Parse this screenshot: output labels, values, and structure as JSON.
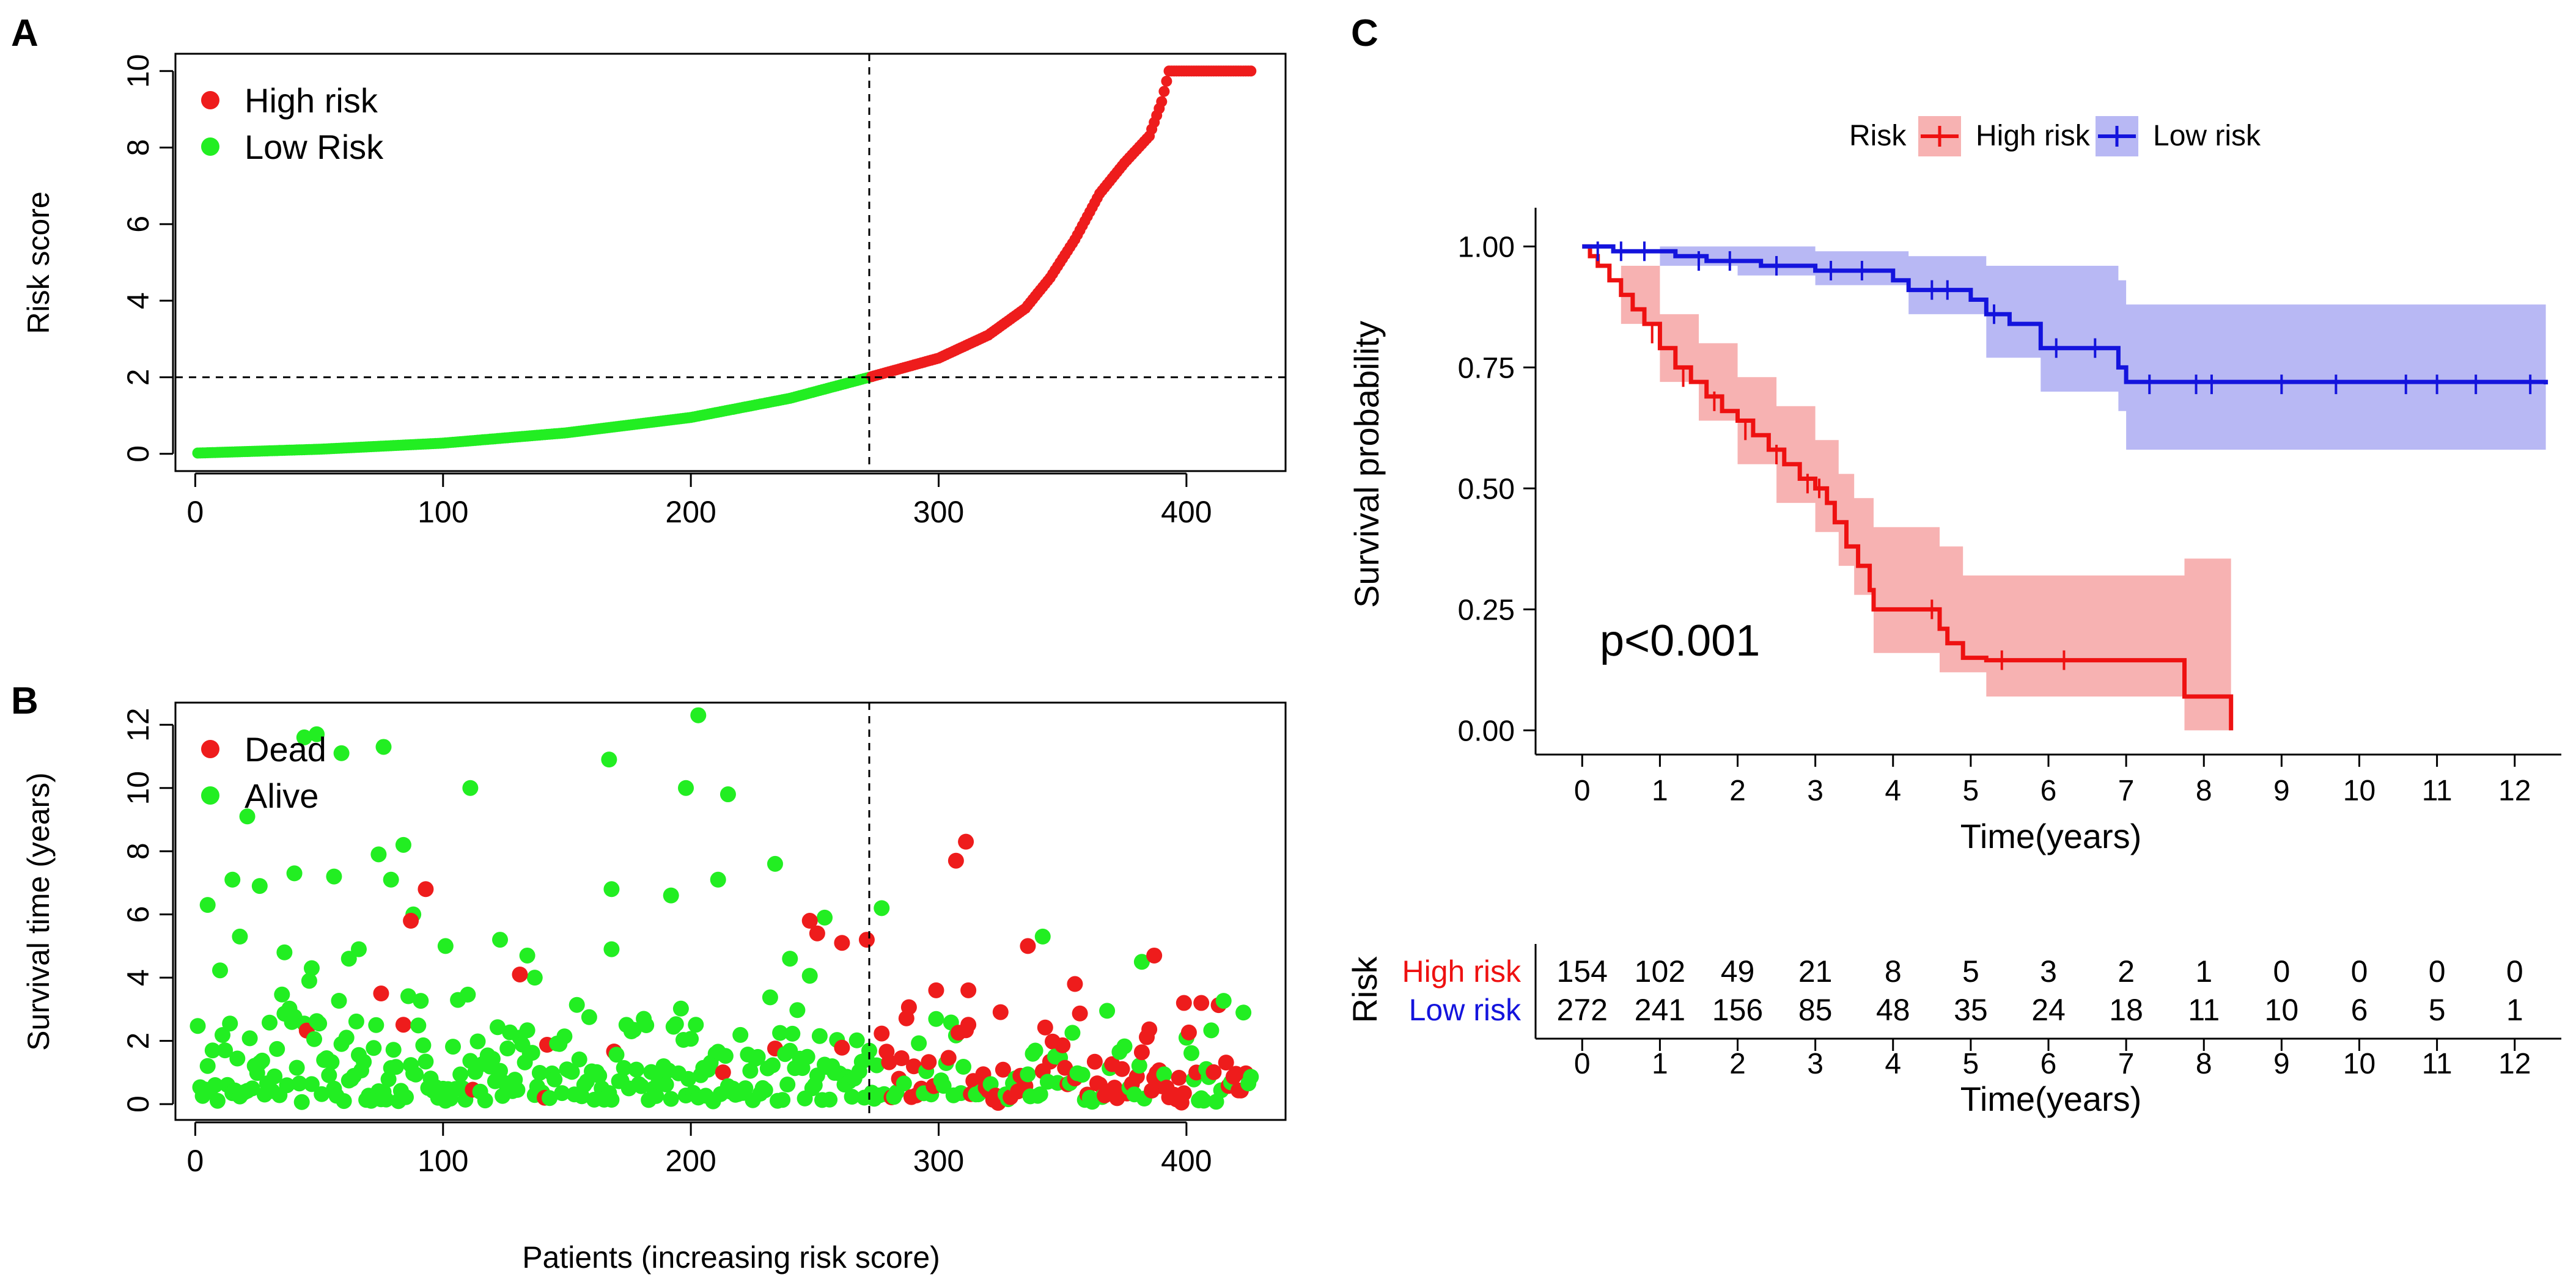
{
  "figure": {
    "panel_a_letter": "A",
    "panel_b_letter": "B",
    "panel_c_letter": "C"
  },
  "colors": {
    "high": "#ee1c1c",
    "low": "#22ee22",
    "km_high": "#ee1111",
    "km_low": "#1414dd",
    "km_high_ci": "#f7b2b2",
    "km_low_ci": "#b8b8f4"
  },
  "chart_data": [
    {
      "id": "riskscore",
      "type": "scatter",
      "ylabel": "Risk score",
      "xlabel": "",
      "xlim": [
        -8,
        440
      ],
      "ylim": [
        -0.45,
        10.45
      ],
      "x_ticks": [
        0,
        100,
        200,
        300,
        400
      ],
      "y_ticks": [
        0,
        2,
        4,
        6,
        8,
        10
      ],
      "cutoff_x": 272,
      "cutoff_y": 2.0,
      "n_low": 272,
      "n_total": 426,
      "curve_knots": [
        [
          1,
          0.02
        ],
        [
          50,
          0.12
        ],
        [
          100,
          0.28
        ],
        [
          150,
          0.55
        ],
        [
          200,
          0.95
        ],
        [
          240,
          1.45
        ],
        [
          272,
          2.0
        ],
        [
          300,
          2.5
        ],
        [
          320,
          3.1
        ],
        [
          335,
          3.8
        ],
        [
          345,
          4.6
        ],
        [
          355,
          5.6
        ],
        [
          365,
          6.8
        ],
        [
          375,
          7.6
        ],
        [
          385,
          8.3
        ],
        [
          390,
          9.2
        ],
        [
          393,
          10.0
        ],
        [
          426,
          10.0
        ]
      ],
      "legend": [
        {
          "label": "High risk",
          "group": "high"
        },
        {
          "label": "Low Risk",
          "group": "low"
        }
      ]
    },
    {
      "id": "survival_status",
      "type": "scatter",
      "ylabel": "Survival time (years)",
      "xlabel": "Patients (increasing risk score)",
      "xlim": [
        -8,
        440
      ],
      "ylim": [
        -0.5,
        12.7
      ],
      "x_ticks": [
        0,
        100,
        200,
        300,
        400
      ],
      "y_ticks": [
        0,
        2,
        4,
        6,
        8,
        10,
        12
      ],
      "cutoff_x": 272,
      "legend": [
        {
          "label": "Dead",
          "status": "dead"
        },
        {
          "label": "Alive",
          "status": "alive"
        }
      ],
      "highlight_points": {
        "alive": [
          [
            203,
            12.3
          ],
          [
            44,
            11.6
          ],
          [
            49,
            11.7
          ],
          [
            59,
            11.1
          ],
          [
            76,
            11.3
          ],
          [
            167,
            10.9
          ],
          [
            198,
            10.0
          ],
          [
            111,
            10.0
          ],
          [
            215,
            9.8
          ],
          [
            21,
            9.1
          ],
          [
            74,
            7.9
          ],
          [
            84,
            8.2
          ],
          [
            168,
            6.8
          ],
          [
            192,
            6.6
          ],
          [
            211,
            7.1
          ],
          [
            234,
            7.6
          ],
          [
            15,
            7.1
          ],
          [
            40,
            7.3
          ],
          [
            56,
            7.2
          ],
          [
            79,
            7.1
          ],
          [
            88,
            6.0
          ],
          [
            5,
            6.3
          ],
          [
            26,
            6.9
          ],
          [
            254,
            5.9
          ],
          [
            277,
            6.2
          ],
          [
            342,
            5.3
          ],
          [
            18,
            5.3
          ],
          [
            36,
            4.8
          ],
          [
            66,
            4.9
          ],
          [
            101,
            5.0
          ],
          [
            123,
            5.2
          ],
          [
            168,
            4.9
          ],
          [
            240,
            4.6
          ],
          [
            382,
            4.5
          ],
          [
            134,
            4.7
          ],
          [
            47,
            4.3
          ],
          [
            62,
            4.6
          ],
          [
            137,
            4.0
          ]
        ],
        "dead": [
          [
            93,
            6.8
          ],
          [
            87,
            5.8
          ],
          [
            311,
            8.3
          ],
          [
            307,
            7.7
          ],
          [
            251,
            5.4
          ],
          [
            261,
            5.1
          ],
          [
            271,
            5.2
          ],
          [
            248,
            5.8
          ],
          [
            336,
            5.0
          ],
          [
            387,
            4.7
          ],
          [
            312,
            3.6
          ],
          [
            299,
            3.6
          ],
          [
            355,
            3.8
          ],
          [
            131,
            4.1
          ],
          [
            75,
            3.5
          ],
          [
            399,
            3.2
          ],
          [
            406,
            3.2
          ]
        ]
      }
    },
    {
      "id": "km",
      "type": "line",
      "xlabel": "Time(years)",
      "ylabel": "Survival probability",
      "xlim": [
        -0.6,
        12.6
      ],
      "ylim": [
        -0.05,
        1.08
      ],
      "x_ticks": [
        0,
        1,
        2,
        3,
        4,
        5,
        6,
        7,
        8,
        9,
        10,
        11,
        12
      ],
      "y_ticks": [
        0.0,
        0.25,
        0.5,
        0.75,
        1.0
      ],
      "y_tick_labels": [
        "0.00",
        "0.25",
        "0.50",
        "0.75",
        "1.00"
      ],
      "annotation": "p<0.001",
      "legend_title": "Risk",
      "series": [
        {
          "name": "High risk",
          "group": "high",
          "steps": [
            [
              0,
              1.0
            ],
            [
              0.1,
              0.98
            ],
            [
              0.2,
              0.96
            ],
            [
              0.35,
              0.93
            ],
            [
              0.5,
              0.9
            ],
            [
              0.65,
              0.87
            ],
            [
              0.8,
              0.84
            ],
            [
              1.0,
              0.79
            ],
            [
              1.2,
              0.75
            ],
            [
              1.4,
              0.72
            ],
            [
              1.6,
              0.69
            ],
            [
              1.8,
              0.66
            ],
            [
              2.0,
              0.64
            ],
            [
              2.2,
              0.61
            ],
            [
              2.4,
              0.58
            ],
            [
              2.6,
              0.55
            ],
            [
              2.8,
              0.52
            ],
            [
              3.0,
              0.5
            ],
            [
              3.15,
              0.47
            ],
            [
              3.25,
              0.43
            ],
            [
              3.4,
              0.38
            ],
            [
              3.55,
              0.34
            ],
            [
              3.7,
              0.29
            ],
            [
              3.75,
              0.25
            ],
            [
              4.6,
              0.21
            ],
            [
              4.7,
              0.18
            ],
            [
              4.9,
              0.15
            ],
            [
              5.2,
              0.145
            ],
            [
              7.75,
              0.07
            ],
            [
              8.35,
              0.0
            ]
          ],
          "ci_upper": [
            [
              0,
              1.0
            ],
            [
              0.5,
              0.96
            ],
            [
              1.0,
              0.86
            ],
            [
              1.5,
              0.8
            ],
            [
              2.0,
              0.73
            ],
            [
              2.5,
              0.67
            ],
            [
              3.0,
              0.6
            ],
            [
              3.3,
              0.53
            ],
            [
              3.5,
              0.48
            ],
            [
              3.75,
              0.42
            ],
            [
              4.6,
              0.38
            ],
            [
              4.9,
              0.32
            ],
            [
              7.75,
              0.32
            ],
            [
              7.75,
              0.355
            ],
            [
              8.35,
              0.355
            ]
          ],
          "ci_lower": [
            [
              0,
              1.0
            ],
            [
              0.5,
              0.84
            ],
            [
              1.0,
              0.72
            ],
            [
              1.5,
              0.64
            ],
            [
              2.0,
              0.55
            ],
            [
              2.5,
              0.47
            ],
            [
              3.0,
              0.41
            ],
            [
              3.3,
              0.34
            ],
            [
              3.5,
              0.28
            ],
            [
              3.75,
              0.16
            ],
            [
              4.6,
              0.12
            ],
            [
              5.2,
              0.07
            ],
            [
              7.75,
              0.07
            ],
            [
              7.75,
              0.0
            ],
            [
              8.35,
              0.0
            ]
          ],
          "censor": [
            [
              0.9,
              0.82
            ],
            [
              1.3,
              0.73
            ],
            [
              1.7,
              0.68
            ],
            [
              2.1,
              0.62
            ],
            [
              2.5,
              0.57
            ],
            [
              2.9,
              0.51
            ],
            [
              3.05,
              0.5
            ],
            [
              4.5,
              0.25
            ],
            [
              5.4,
              0.145
            ],
            [
              6.2,
              0.145
            ]
          ]
        },
        {
          "name": "Low risk",
          "group": "low",
          "steps": [
            [
              0,
              1.0
            ],
            [
              0.4,
              0.99
            ],
            [
              1.2,
              0.98
            ],
            [
              1.6,
              0.97
            ],
            [
              2.3,
              0.96
            ],
            [
              3.0,
              0.95
            ],
            [
              4.0,
              0.93
            ],
            [
              4.2,
              0.91
            ],
            [
              5.0,
              0.89
            ],
            [
              5.2,
              0.86
            ],
            [
              5.5,
              0.84
            ],
            [
              5.9,
              0.79
            ],
            [
              6.9,
              0.75
            ],
            [
              7.0,
              0.72
            ],
            [
              12.4,
              0.715
            ]
          ],
          "ci_upper": [
            [
              0,
              1.0
            ],
            [
              1,
              1.0
            ],
            [
              3,
              0.99
            ],
            [
              4.2,
              0.98
            ],
            [
              5.2,
              0.96
            ],
            [
              6.9,
              0.93
            ],
            [
              7.0,
              0.88
            ],
            [
              12.4,
              0.88
            ]
          ],
          "ci_lower": [
            [
              0,
              1.0
            ],
            [
              1,
              0.96
            ],
            [
              2,
              0.94
            ],
            [
              3,
              0.92
            ],
            [
              4.2,
              0.86
            ],
            [
              5.2,
              0.77
            ],
            [
              5.9,
              0.7
            ],
            [
              6.9,
              0.66
            ],
            [
              7.0,
              0.58
            ],
            [
              12.4,
              0.58
            ]
          ],
          "censor": [
            [
              0.2,
              0.99
            ],
            [
              0.5,
              0.99
            ],
            [
              0.8,
              0.99
            ],
            [
              1.5,
              0.97
            ],
            [
              1.9,
              0.97
            ],
            [
              2.5,
              0.96
            ],
            [
              3.2,
              0.95
            ],
            [
              3.6,
              0.95
            ],
            [
              4.5,
              0.91
            ],
            [
              4.7,
              0.91
            ],
            [
              5.3,
              0.86
            ],
            [
              6.1,
              0.79
            ],
            [
              6.6,
              0.79
            ],
            [
              7.3,
              0.715
            ],
            [
              7.9,
              0.715
            ],
            [
              8.1,
              0.715
            ],
            [
              9.0,
              0.715
            ],
            [
              9.7,
              0.715
            ],
            [
              10.6,
              0.715
            ],
            [
              11.0,
              0.715
            ],
            [
              11.5,
              0.715
            ],
            [
              12.2,
              0.715
            ]
          ]
        }
      ]
    },
    {
      "id": "risk_table",
      "type": "table",
      "ylabel": "Risk",
      "xlabel": "Time(years)",
      "x_ticks": [
        0,
        1,
        2,
        3,
        4,
        5,
        6,
        7,
        8,
        9,
        10,
        11,
        12
      ],
      "rows": [
        {
          "label": "High risk",
          "group": "high",
          "values": [
            154,
            102,
            49,
            21,
            8,
            5,
            3,
            2,
            1,
            0,
            0,
            0,
            0
          ]
        },
        {
          "label": "Low risk",
          "group": "low",
          "values": [
            272,
            241,
            156,
            85,
            48,
            35,
            24,
            18,
            11,
            10,
            6,
            5,
            1
          ]
        }
      ]
    }
  ]
}
